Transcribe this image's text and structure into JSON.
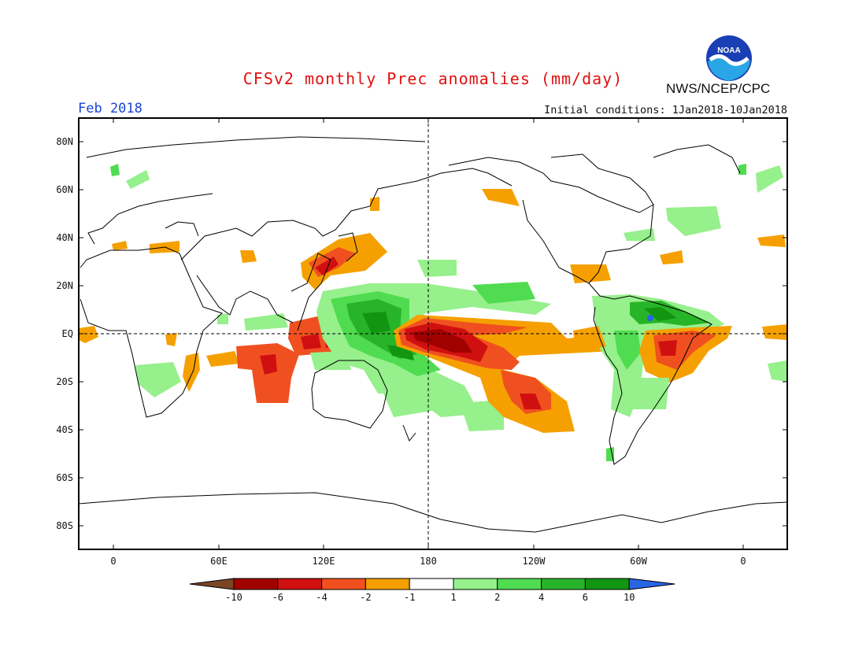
{
  "header": {
    "title": "CFSv2 monthly Prec anomalies (mm/day)",
    "month": "Feb 2018",
    "initial_conditions": "Initial conditions: 1Jan2018-10Jan2018",
    "org": "NWS/NCEP/CPC",
    "logo_text": "NOAA"
  },
  "axes": {
    "lat_labels": [
      "80N",
      "60N",
      "40N",
      "20N",
      "EQ",
      "20S",
      "40S",
      "60S",
      "80S"
    ],
    "lon_labels": [
      "0",
      "60E",
      "120E",
      "180",
      "120W",
      "60W",
      "0"
    ]
  },
  "colorbar": {
    "labels": [
      "-10",
      "-6",
      "-4",
      "-2",
      "-1",
      "1",
      "2",
      "4",
      "6",
      "10"
    ],
    "colors": {
      "lt_neg10": "#7a4524",
      "neg10_neg6": "#a00000",
      "neg6_neg4": "#d01010",
      "neg4_neg2": "#f05020",
      "neg2_neg1": "#f5a000",
      "neg1_1": "#ffffff",
      "1_2": "#96f08c",
      "2_4": "#50dc50",
      "4_6": "#28b428",
      "6_10": "#129612",
      "gt_10": "#2864e6"
    }
  }
}
